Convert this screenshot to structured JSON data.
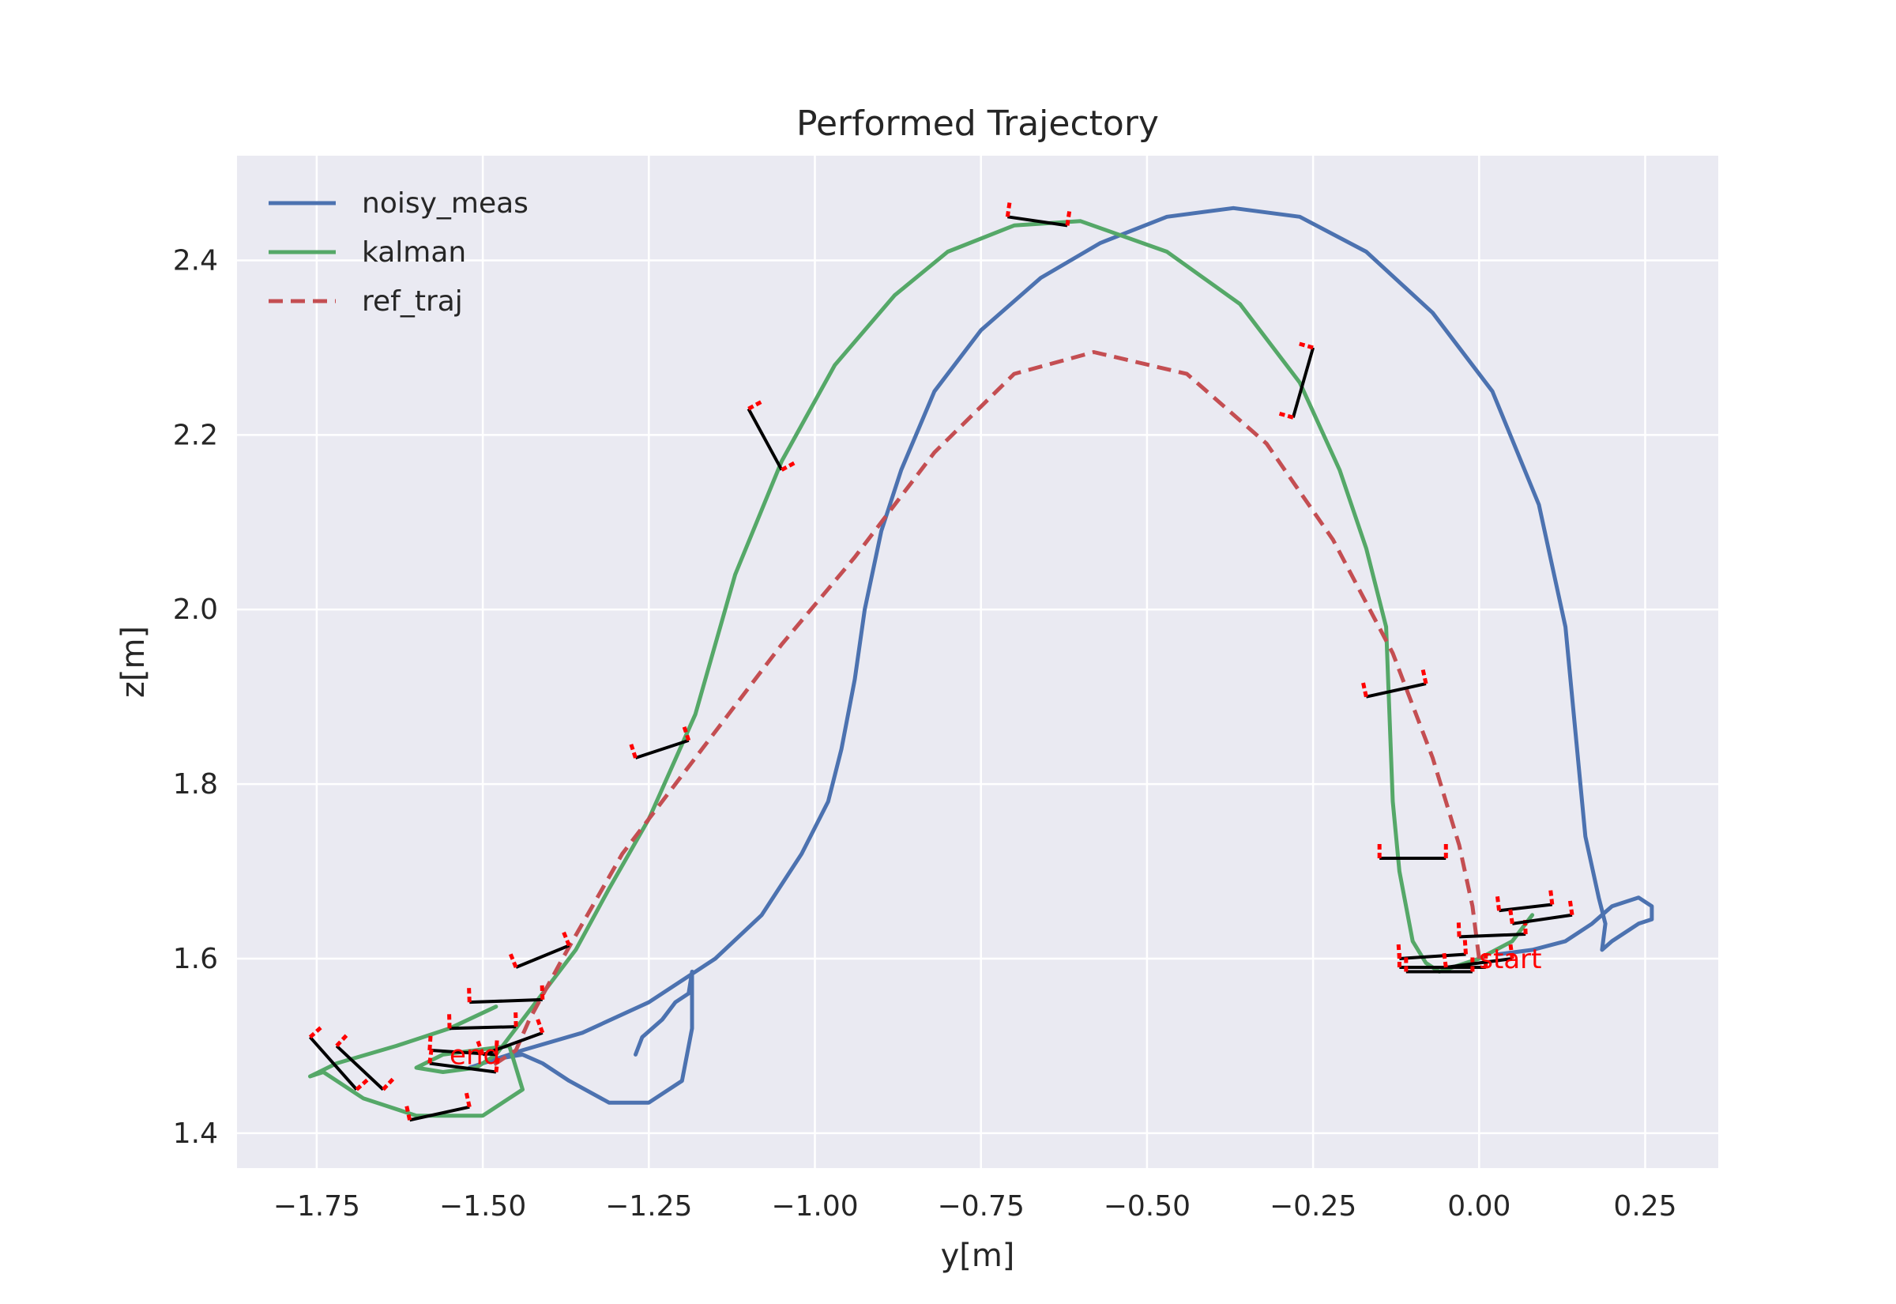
{
  "chart_data": {
    "type": "line",
    "title": "Performed Trajectory",
    "xlabel": "y[m]",
    "ylabel": "z[m]",
    "xlim": [
      -1.87,
      0.36
    ],
    "ylim": [
      1.36,
      2.52
    ],
    "xticks": [
      -1.75,
      -1.5,
      -1.25,
      -1.0,
      -0.75,
      -0.5,
      -0.25,
      0.0,
      0.25
    ],
    "xtick_labels": [
      "−1.75",
      "−1.50",
      "−1.25",
      "−1.00",
      "−0.75",
      "−0.50",
      "−0.25",
      "0.00",
      "0.25"
    ],
    "yticks": [
      1.4,
      1.6,
      1.8,
      2.0,
      2.2,
      2.4
    ],
    "ytick_labels": [
      "1.4",
      "1.6",
      "1.8",
      "2.0",
      "2.2",
      "2.4"
    ],
    "grid": true,
    "background": "#eaeaf2",
    "legend_position": "top-left",
    "series": [
      {
        "name": "noisy_meas",
        "color": "#4c72b0",
        "style": "solid",
        "points": [
          [
            -1.27,
            1.49
          ],
          [
            -1.26,
            1.51
          ],
          [
            -1.23,
            1.53
          ],
          [
            -1.21,
            1.55
          ],
          [
            -1.19,
            1.56
          ],
          [
            -1.185,
            1.585
          ],
          [
            -1.185,
            1.52
          ],
          [
            -1.2,
            1.46
          ],
          [
            -1.25,
            1.435
          ],
          [
            -1.31,
            1.435
          ],
          [
            -1.37,
            1.46
          ],
          [
            -1.41,
            1.48
          ],
          [
            -1.44,
            1.49
          ],
          [
            -1.48,
            1.485
          ],
          [
            -1.52,
            1.475
          ],
          [
            -1.44,
            1.495
          ],
          [
            -1.35,
            1.515
          ],
          [
            -1.25,
            1.55
          ],
          [
            -1.15,
            1.6
          ],
          [
            -1.08,
            1.65
          ],
          [
            -1.02,
            1.72
          ],
          [
            -0.98,
            1.78
          ],
          [
            -0.96,
            1.84
          ],
          [
            -0.94,
            1.92
          ],
          [
            -0.925,
            2.0
          ],
          [
            -0.9,
            2.09
          ],
          [
            -0.87,
            2.16
          ],
          [
            -0.82,
            2.25
          ],
          [
            -0.75,
            2.32
          ],
          [
            -0.66,
            2.38
          ],
          [
            -0.57,
            2.42
          ],
          [
            -0.47,
            2.45
          ],
          [
            -0.37,
            2.46
          ],
          [
            -0.27,
            2.45
          ],
          [
            -0.17,
            2.41
          ],
          [
            -0.07,
            2.34
          ],
          [
            0.02,
            2.25
          ],
          [
            0.09,
            2.12
          ],
          [
            0.13,
            1.98
          ],
          [
            0.15,
            1.82
          ],
          [
            0.16,
            1.74
          ],
          [
            0.18,
            1.67
          ],
          [
            0.19,
            1.64
          ],
          [
            0.185,
            1.61
          ],
          [
            0.2,
            1.62
          ],
          [
            0.24,
            1.64
          ],
          [
            0.26,
            1.645
          ],
          [
            0.26,
            1.66
          ],
          [
            0.24,
            1.67
          ],
          [
            0.2,
            1.66
          ],
          [
            0.17,
            1.64
          ],
          [
            0.13,
            1.62
          ],
          [
            0.08,
            1.61
          ],
          [
            0.03,
            1.605
          ]
        ]
      },
      {
        "name": "kalman",
        "color": "#55a868",
        "style": "solid",
        "points": [
          [
            0.08,
            1.65
          ],
          [
            0.05,
            1.62
          ],
          [
            0.0,
            1.6
          ],
          [
            -0.04,
            1.59
          ],
          [
            -0.06,
            1.585
          ],
          [
            -0.08,
            1.595
          ],
          [
            -0.1,
            1.62
          ],
          [
            -0.12,
            1.7
          ],
          [
            -0.13,
            1.78
          ],
          [
            -0.135,
            1.88
          ],
          [
            -0.14,
            1.98
          ],
          [
            -0.17,
            2.07
          ],
          [
            -0.21,
            2.16
          ],
          [
            -0.27,
            2.26
          ],
          [
            -0.36,
            2.35
          ],
          [
            -0.47,
            2.41
          ],
          [
            -0.6,
            2.445
          ],
          [
            -0.7,
            2.44
          ],
          [
            -0.8,
            2.41
          ],
          [
            -0.88,
            2.36
          ],
          [
            -0.97,
            2.28
          ],
          [
            -1.05,
            2.17
          ],
          [
            -1.12,
            2.04
          ],
          [
            -1.18,
            1.88
          ],
          [
            -1.25,
            1.76
          ],
          [
            -1.31,
            1.68
          ],
          [
            -1.36,
            1.61
          ],
          [
            -1.41,
            1.56
          ],
          [
            -1.45,
            1.52
          ],
          [
            -1.48,
            1.49
          ],
          [
            -1.51,
            1.475
          ],
          [
            -1.56,
            1.47
          ],
          [
            -1.6,
            1.475
          ],
          [
            -1.56,
            1.49
          ],
          [
            -1.46,
            1.5
          ],
          [
            -1.44,
            1.45
          ],
          [
            -1.5,
            1.42
          ],
          [
            -1.6,
            1.42
          ],
          [
            -1.68,
            1.44
          ],
          [
            -1.74,
            1.47
          ],
          [
            -1.76,
            1.465
          ],
          [
            -1.72,
            1.48
          ],
          [
            -1.63,
            1.5
          ],
          [
            -1.55,
            1.52
          ],
          [
            -1.48,
            1.545
          ]
        ]
      },
      {
        "name": "ref_traj",
        "color": "#c44e52",
        "style": "dashed",
        "points": [
          [
            0.0,
            1.6
          ],
          [
            -0.01,
            1.66
          ],
          [
            -0.03,
            1.73
          ],
          [
            -0.07,
            1.83
          ],
          [
            -0.13,
            1.95
          ],
          [
            -0.22,
            2.08
          ],
          [
            -0.32,
            2.19
          ],
          [
            -0.44,
            2.27
          ],
          [
            -0.58,
            2.295
          ],
          [
            -0.7,
            2.27
          ],
          [
            -0.82,
            2.18
          ],
          [
            -0.94,
            2.06
          ],
          [
            -1.05,
            1.96
          ],
          [
            -1.17,
            1.84
          ],
          [
            -1.29,
            1.72
          ],
          [
            -1.38,
            1.6
          ],
          [
            -1.43,
            1.53
          ],
          [
            -1.45,
            1.495
          ],
          [
            -1.49,
            1.475
          ]
        ]
      }
    ],
    "annotations": [
      {
        "text": "start",
        "x": 0.0,
        "y": 1.6
      },
      {
        "text": "end",
        "x": -1.55,
        "y": 1.49
      }
    ],
    "orientation_markers": [
      [
        [
          -0.71,
          2.45
        ],
        [
          -0.62,
          2.44
        ]
      ],
      [
        [
          -1.1,
          2.23
        ],
        [
          -1.05,
          2.16
        ]
      ],
      [
        [
          -0.25,
          2.3
        ],
        [
          -0.28,
          2.22
        ]
      ],
      [
        [
          -1.27,
          1.83
        ],
        [
          -1.19,
          1.85
        ]
      ],
      [
        [
          -0.17,
          1.9
        ],
        [
          -0.08,
          1.915
        ]
      ],
      [
        [
          -0.15,
          1.715
        ],
        [
          -0.05,
          1.715
        ]
      ],
      [
        [
          -1.45,
          1.59
        ],
        [
          -1.37,
          1.615
        ]
      ],
      [
        [
          -1.52,
          1.55
        ],
        [
          -1.41,
          1.553
        ]
      ],
      [
        [
          -1.55,
          1.52
        ],
        [
          -1.45,
          1.522
        ]
      ],
      [
        [
          -1.58,
          1.495
        ],
        [
          -1.48,
          1.49
        ]
      ],
      [
        [
          -1.58,
          1.48
        ],
        [
          -1.48,
          1.47
        ]
      ],
      [
        [
          -1.5,
          1.49
        ],
        [
          -1.41,
          1.515
        ]
      ],
      [
        [
          -1.76,
          1.51
        ],
        [
          -1.69,
          1.45
        ]
      ],
      [
        [
          -1.72,
          1.5
        ],
        [
          -1.65,
          1.45
        ]
      ],
      [
        [
          -1.61,
          1.415
        ],
        [
          -1.52,
          1.43
        ]
      ],
      [
        [
          0.03,
          1.655
        ],
        [
          0.11,
          1.662
        ]
      ],
      [
        [
          -0.03,
          1.625
        ],
        [
          0.07,
          1.628
        ]
      ],
      [
        [
          0.05,
          1.64
        ],
        [
          0.14,
          1.65
        ]
      ],
      [
        [
          -0.12,
          1.6
        ],
        [
          -0.02,
          1.605
        ]
      ],
      [
        [
          -0.12,
          1.59
        ],
        [
          0.01,
          1.59
        ]
      ],
      [
        [
          -0.11,
          1.585
        ],
        [
          -0.01,
          1.585
        ]
      ],
      [
        [
          -0.05,
          1.59
        ],
        [
          0.05,
          1.6
        ]
      ]
    ]
  }
}
